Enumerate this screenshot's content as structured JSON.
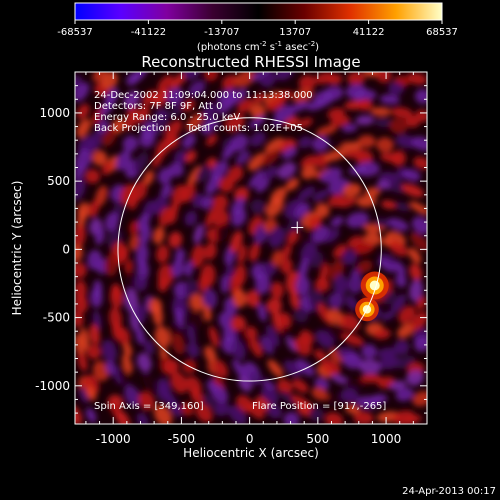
{
  "colorbar": {
    "ticks": [
      "-68537",
      "-41122",
      "-13707",
      "13707",
      "41122",
      "68537"
    ],
    "range": [
      -68537,
      68537
    ],
    "unit_pre": "(photons cm",
    "unit_sup1": "-2",
    "unit_mid": " s",
    "unit_sup2": "-1",
    "unit_mid2": " asec",
    "unit_sup3": "-2",
    "unit_post": ")",
    "colors": [
      "#0000ff",
      "#5a00ff",
      "#8000a0",
      "#3a0030",
      "#000000",
      "#6a0000",
      "#e03000",
      "#ffa000",
      "#ffffc8"
    ]
  },
  "image": {
    "title": "Reconstructed RHESSI Image",
    "info_lines": [
      "24-Dec-2002 11:09:04.000 to 11:13:38.000",
      "Detectors: 7F 8F 9F, Att 0",
      "Energy Range: 6.0 - 25.0 keV",
      "Back Projection     Total counts: 1.02E+05"
    ],
    "spin_axis": "Spin Axis = [349,160]",
    "flare_position": "Flare Position = [917,-265]",
    "timestamp": "24-Apr-2013 00:17"
  },
  "chart_data": {
    "type": "heatmap",
    "title": "Reconstructed RHESSI Image",
    "xlabel": "Heliocentric X (arcsec)",
    "ylabel": "Heliocentric Y (arcsec)",
    "xlim": [
      -1280,
      1300
    ],
    "ylim": [
      -1280,
      1300
    ],
    "xticks": [
      -1000,
      -500,
      0,
      500,
      1000
    ],
    "yticks": [
      -1000,
      -500,
      0,
      500,
      1000
    ],
    "xtick_labels": [
      "-1000",
      "-500",
      "0",
      "500",
      "1000"
    ],
    "ytick_labels": [
      "-1000",
      "-500",
      "0",
      "500",
      "1000"
    ],
    "solar_limb": {
      "center": [
        0,
        0
      ],
      "radius_arcsec": 965
    },
    "spin_axis_marker": [
      349,
      160
    ],
    "flare_position": [
      917,
      -265
    ],
    "bright_sources": [
      {
        "x": 917,
        "y": -265,
        "intensity": 68537
      },
      {
        "x": 860,
        "y": -440,
        "intensity": 55000
      }
    ]
  }
}
